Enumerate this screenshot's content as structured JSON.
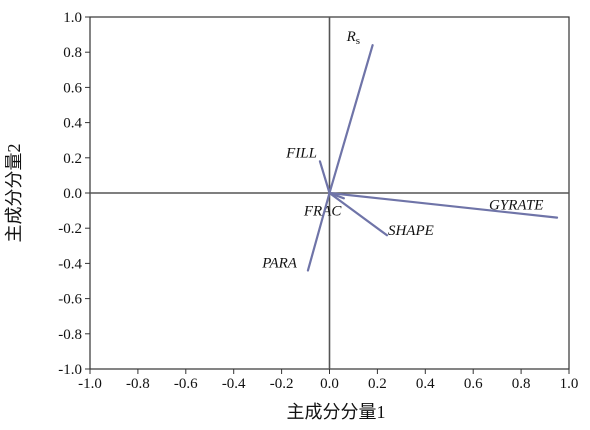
{
  "chart_data": {
    "type": "scatter",
    "subtype": "loading-vectors",
    "xlabel": "主成分分量1",
    "ylabel": "主成分分量2",
    "xlim": [
      -1.0,
      1.0
    ],
    "ylim": [
      -1.0,
      1.0
    ],
    "xticks": [
      "-1.0",
      "-0.8",
      "-0.6",
      "-0.4",
      "-0.2",
      "0.0",
      "0.2",
      "0.4",
      "0.6",
      "0.8",
      "1.0"
    ],
    "yticks": [
      "1.0",
      "0.8",
      "0.6",
      "0.4",
      "0.2",
      "0.0",
      "-0.2",
      "-0.4",
      "-0.6",
      "-0.8",
      "-1.0"
    ],
    "grid": false,
    "reference_lines": [
      "x=0",
      "y=0"
    ],
    "vectors": [
      {
        "name": "R",
        "subscript": "s",
        "x": 0.18,
        "y": 0.84
      },
      {
        "name": "FILL",
        "x": -0.04,
        "y": 0.18
      },
      {
        "name": "GYRATE",
        "x": 0.95,
        "y": -0.14
      },
      {
        "name": "FRAC",
        "x": 0.06,
        "y": -0.03
      },
      {
        "name": "SHAPE",
        "x": 0.24,
        "y": -0.24
      },
      {
        "name": "PARA",
        "x": -0.09,
        "y": -0.44
      }
    ],
    "colors": {
      "vector": "#6f74a8",
      "axes": "#555555"
    }
  }
}
